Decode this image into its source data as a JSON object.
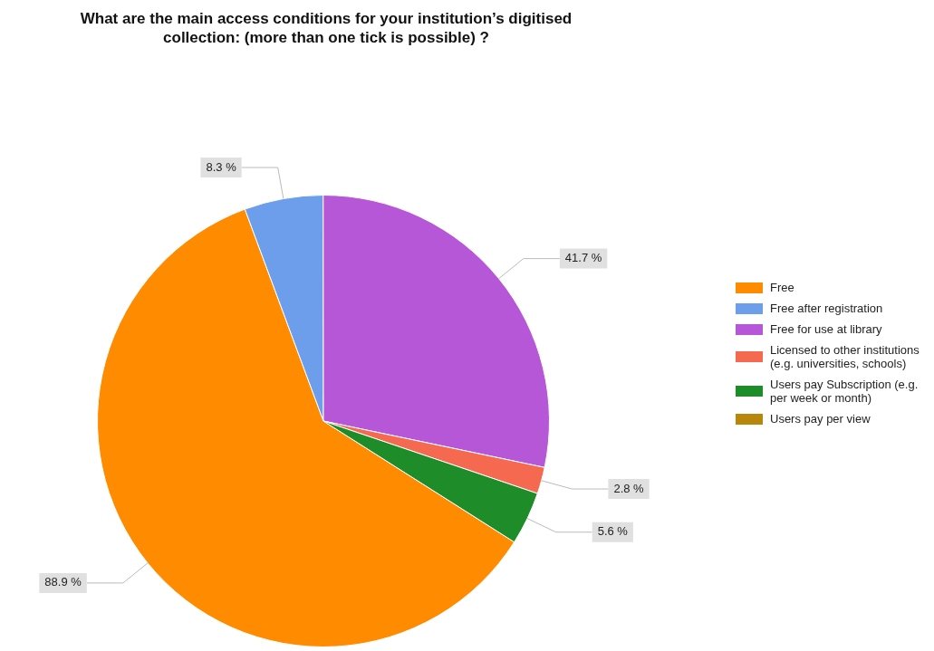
{
  "chart_data": {
    "type": "pie",
    "title": "What are the main access conditions for your institution’s digitised collection: (more than one tick is possible) ?",
    "categories": [
      "Free",
      "Free after registration",
      "Free for use at library",
      "Licensed to other institutions (e.g. universities, schools)",
      "Users pay Subscription (e.g. per week or month)",
      "Users pay per view"
    ],
    "values": [
      88.9,
      8.3,
      41.7,
      2.8,
      5.6,
      0
    ],
    "colors": [
      "#ff8c00",
      "#6d9eeb",
      "#b657d8",
      "#f4694f",
      "#1f8c2a",
      "#b8860b"
    ],
    "value_labels": [
      "88.9 %",
      "8.3 %",
      "41.7 %",
      "2.8 %",
      "5.6 %",
      null
    ],
    "legend": "right"
  }
}
